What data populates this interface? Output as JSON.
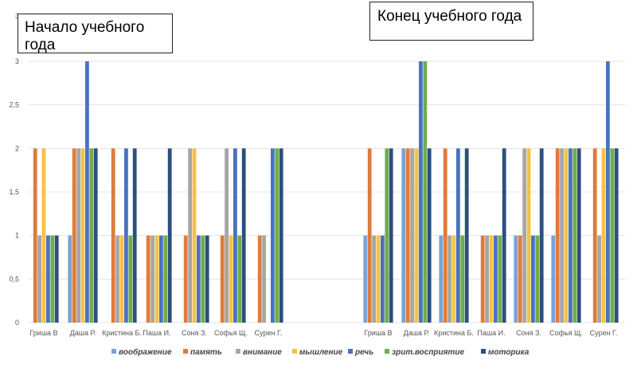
{
  "titles": {
    "start": "Начало учебного года",
    "end": "Конец учебного года"
  },
  "chart_data": {
    "type": "bar",
    "ylim": [
      0,
      3
    ],
    "yticks": [
      "0",
      "0,5",
      "1",
      "1,5",
      "2",
      "2,5",
      "3"
    ],
    "top_tick_label": "3",
    "grid": true,
    "legend_position": "bottom",
    "series": [
      {
        "name": "воображение",
        "color": "#7da1d4"
      },
      {
        "name": "память",
        "color": "#e07b3b"
      },
      {
        "name": "внимание",
        "color": "#a6a6a6"
      },
      {
        "name": "мышление",
        "color": "#f5c242"
      },
      {
        "name": "речь",
        "color": "#4a72c2"
      },
      {
        "name": "зрит.восприятие",
        "color": "#70ad47"
      },
      {
        "name": "моторика",
        "color": "#2b4f7e"
      }
    ],
    "groups": [
      {
        "title": "Начало учебного года",
        "categories": [
          "Гриша В",
          "Даша Р.",
          "Кристина Б.",
          "Паша И.",
          "Соня З.",
          "Софья Щ.",
          "Сурен Г."
        ],
        "values": [
          [
            0,
            1,
            0,
            0,
            0,
            0,
            0
          ],
          [
            2,
            2,
            2,
            1,
            1,
            1,
            1
          ],
          [
            1,
            2,
            1,
            1,
            2,
            2,
            1
          ],
          [
            2,
            2,
            1,
            1,
            2,
            1,
            0
          ],
          [
            1,
            3,
            2,
            1,
            1,
            2,
            2
          ],
          [
            1,
            2,
            1,
            1,
            1,
            1,
            2
          ],
          [
            1,
            2,
            2,
            2,
            1,
            2,
            2
          ]
        ]
      },
      {
        "title": "Конец учебного года",
        "categories": [
          "Гриша В",
          "Даша Р.",
          "Кристина Б.",
          "Паша И.",
          "Соня З.",
          "Софья Щ.",
          "Сурен Г."
        ],
        "values": [
          [
            1,
            2,
            1,
            0,
            1,
            1,
            0
          ],
          [
            2,
            2,
            2,
            1,
            1,
            2,
            2
          ],
          [
            1,
            2,
            1,
            1,
            2,
            2,
            1
          ],
          [
            1,
            2,
            1,
            1,
            2,
            2,
            2
          ],
          [
            1,
            3,
            2,
            1,
            1,
            2,
            3
          ],
          [
            2,
            3,
            1,
            1,
            1,
            2,
            2
          ],
          [
            2,
            2,
            2,
            2,
            2,
            2,
            2
          ]
        ]
      }
    ]
  }
}
